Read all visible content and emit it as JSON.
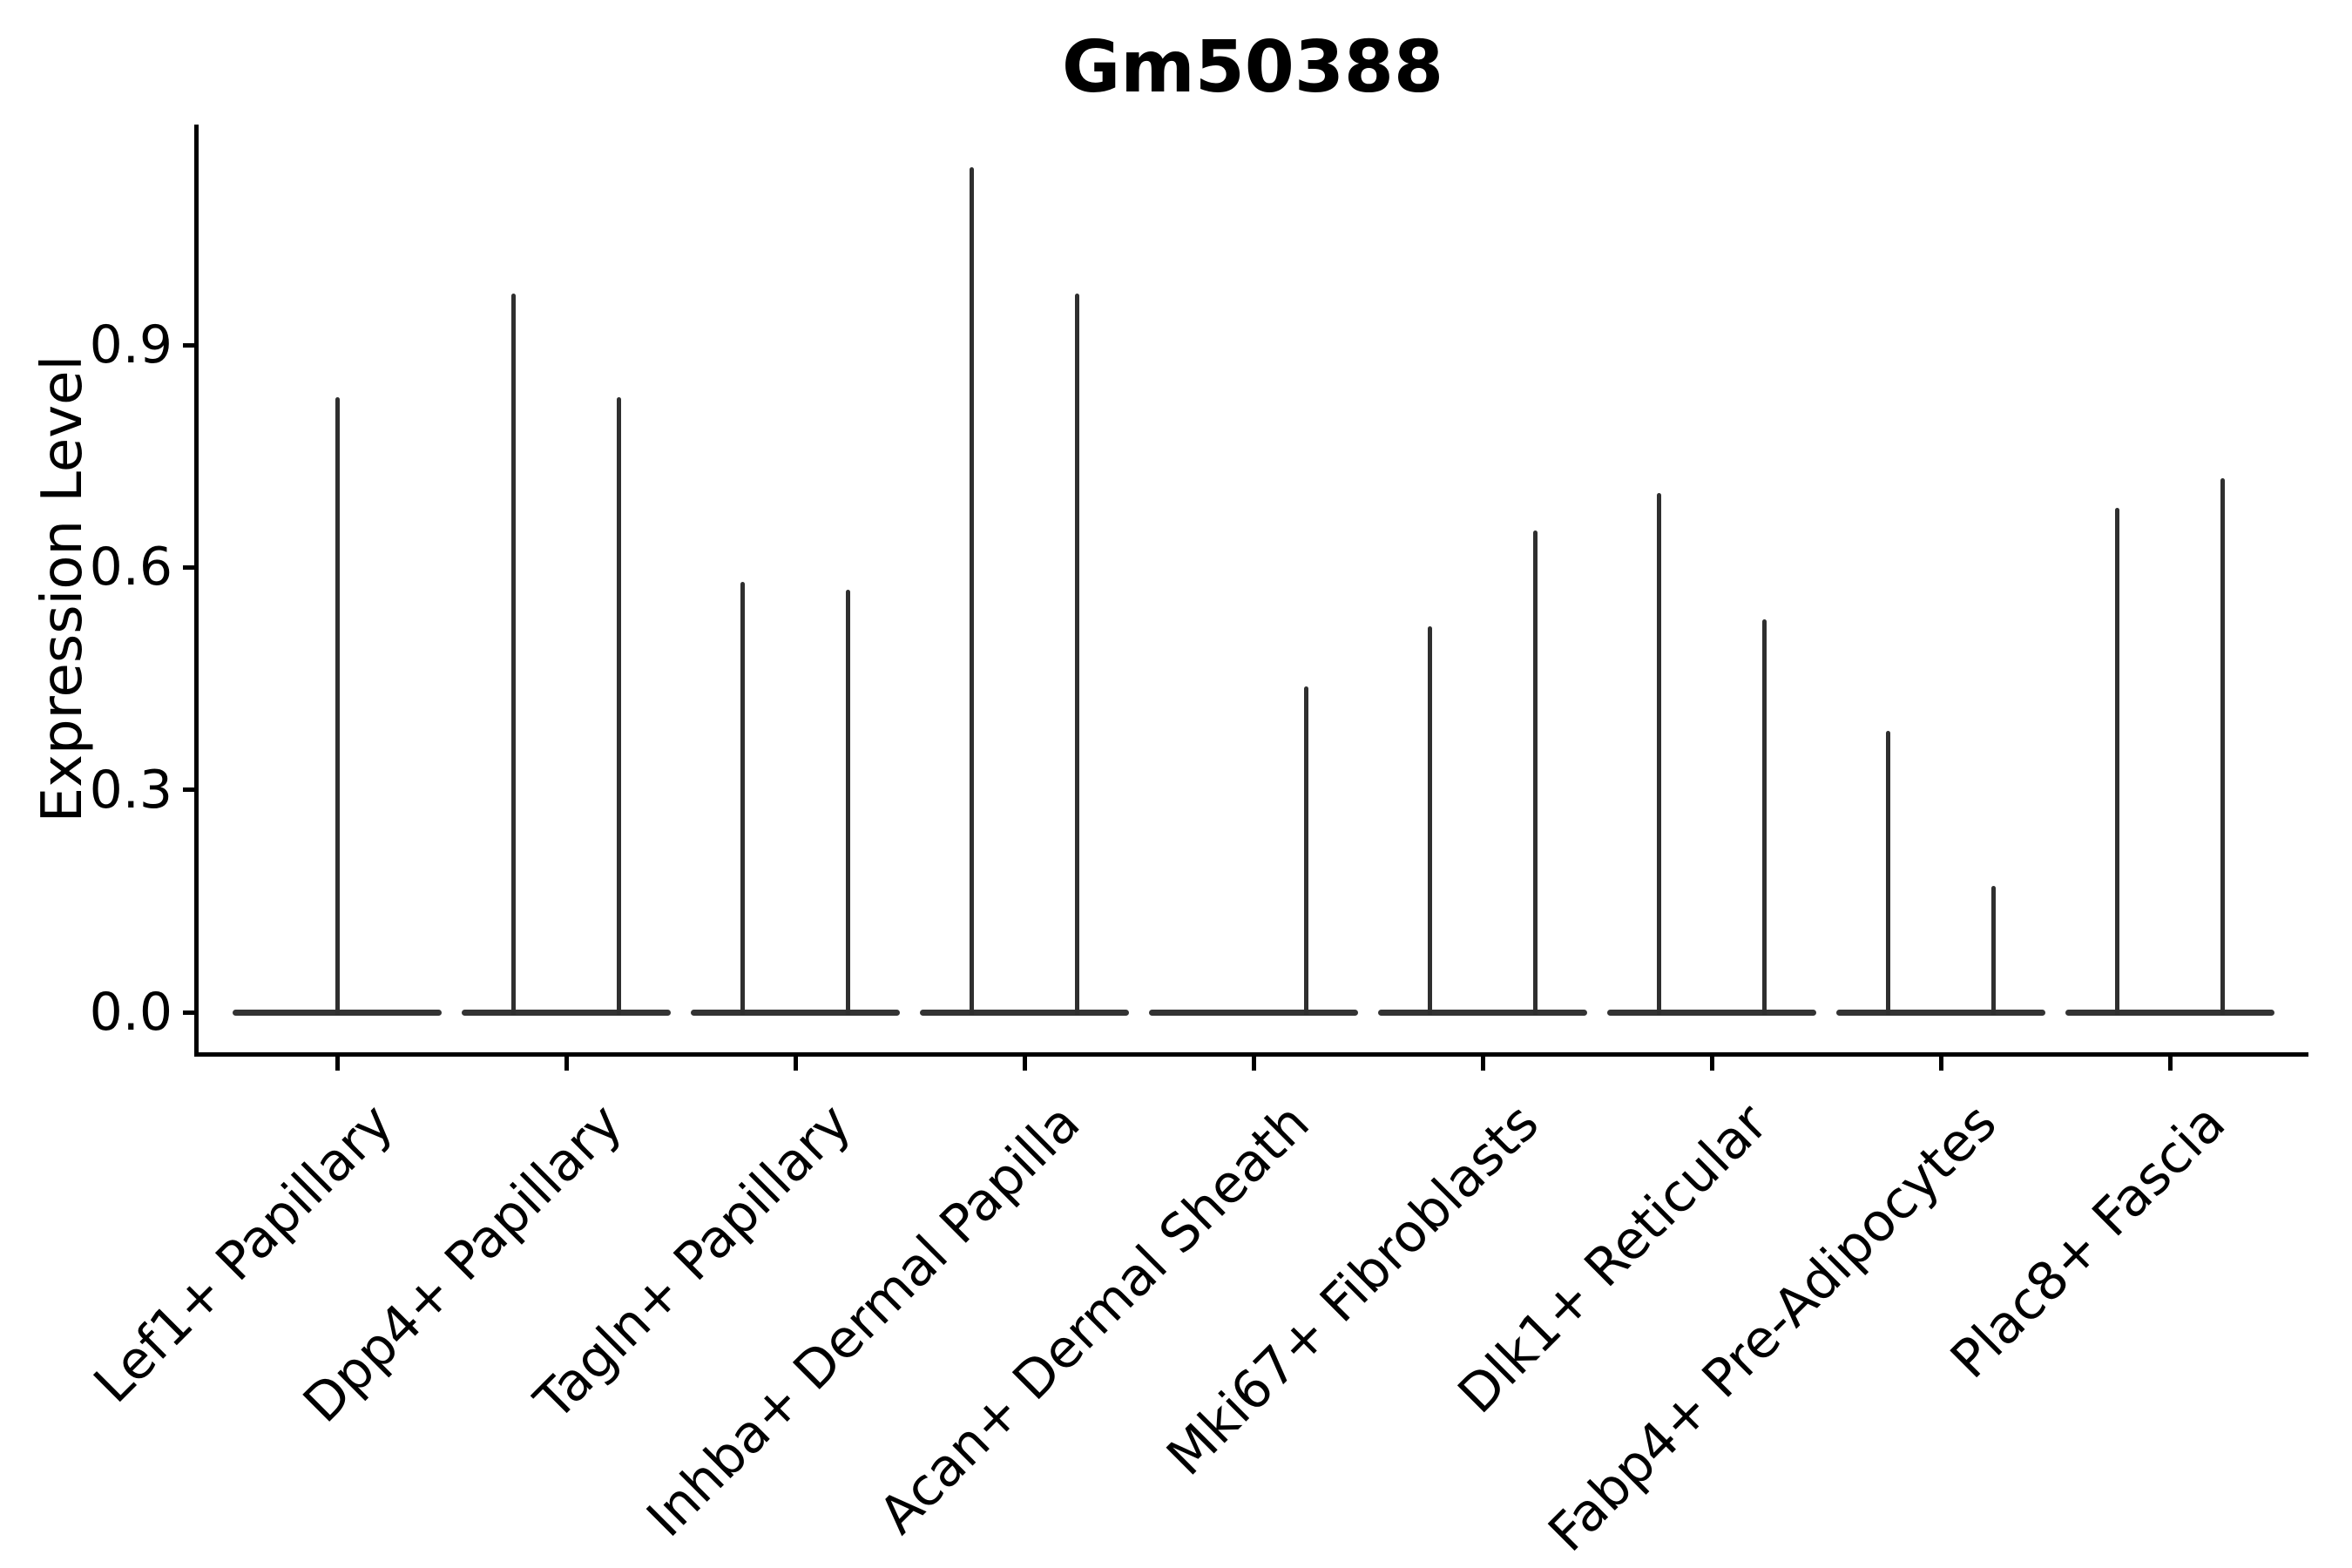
{
  "figure": {
    "title": "Gm50388",
    "ylabel": "Expression Level"
  },
  "chart_data": {
    "type": "violin",
    "title": "Gm50388",
    "xlabel": "",
    "ylabel": "Expression Level",
    "ylim": [
      0,
      1.2
    ],
    "yticks": [
      0.0,
      0.3,
      0.6,
      0.9
    ],
    "grid": false,
    "legend": "none",
    "description": "Violin plot of Gm50388 expression; each cell-type category shows violins collapsed flat at 0 with thin spikes reaching the maximum expression value",
    "categories": [
      "Lef1+ Papillary",
      "Dpp4+ Papillary",
      "Tagln+ Papillary",
      "Inhba+ Dermal Papilla",
      "Acan+ Dermal Sheath",
      "Mki67+ Fibroblasts",
      "Dlk1+ Reticular",
      "Fabp4+ Pre-Adipocytes",
      "Plac8+ Fascia"
    ],
    "series": [
      {
        "category": "Lef1+ Papillary",
        "baseline": 0.0,
        "spikes": [
          {
            "offset_frac": 0.0,
            "max": 0.83
          }
        ]
      },
      {
        "category": "Dpp4+ Papillary",
        "baseline": 0.0,
        "spikes": [
          {
            "offset_frac": -0.23,
            "max": 0.97
          },
          {
            "offset_frac": 0.23,
            "max": 0.83
          }
        ]
      },
      {
        "category": "Tagln+ Papillary",
        "baseline": 0.0,
        "spikes": [
          {
            "offset_frac": -0.23,
            "max": 0.58
          },
          {
            "offset_frac": 0.23,
            "max": 0.57
          }
        ]
      },
      {
        "category": "Inhba+ Dermal Papilla",
        "baseline": 0.0,
        "spikes": [
          {
            "offset_frac": -0.23,
            "max": 1.14
          },
          {
            "offset_frac": 0.23,
            "max": 0.97
          }
        ]
      },
      {
        "category": "Acan+ Dermal Sheath",
        "baseline": 0.0,
        "spikes": [
          {
            "offset_frac": 0.23,
            "max": 0.44
          }
        ]
      },
      {
        "category": "Mki67+ Fibroblasts",
        "baseline": 0.0,
        "spikes": [
          {
            "offset_frac": -0.23,
            "max": 0.52
          },
          {
            "offset_frac": 0.23,
            "max": 0.65
          }
        ]
      },
      {
        "category": "Dlk1+ Reticular",
        "baseline": 0.0,
        "spikes": [
          {
            "offset_frac": -0.23,
            "max": 0.7
          },
          {
            "offset_frac": 0.23,
            "max": 0.53
          }
        ]
      },
      {
        "category": "Fabp4+ Pre-Adipocytes",
        "baseline": 0.0,
        "spikes": [
          {
            "offset_frac": -0.23,
            "max": 0.38
          },
          {
            "offset_frac": 0.23,
            "max": 0.17
          }
        ]
      },
      {
        "category": "Plac8+ Fascia",
        "baseline": 0.0,
        "spikes": [
          {
            "offset_frac": -0.23,
            "max": 0.68
          },
          {
            "offset_frac": 0.23,
            "max": 0.72
          }
        ]
      }
    ],
    "colors": {
      "violin_line": "#2f2f2f",
      "baseline_line": "#333333",
      "axis": "#000000",
      "text": "#000000",
      "background": "#ffffff"
    }
  }
}
